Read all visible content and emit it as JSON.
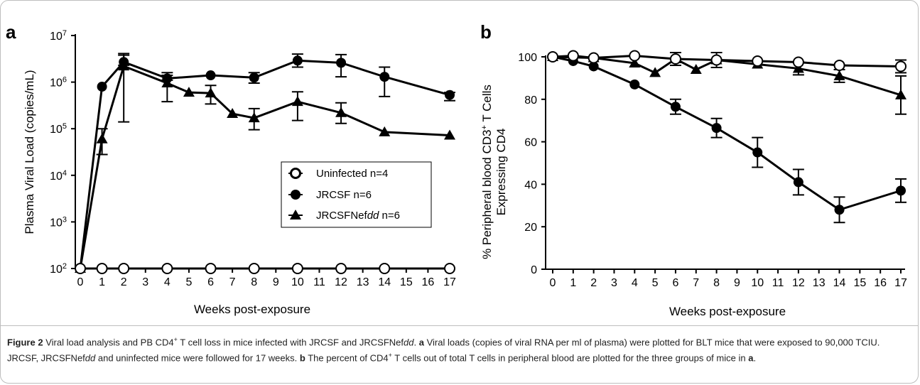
{
  "chart_data": [
    {
      "panel": "a",
      "type": "line",
      "y_scale": "log",
      "xlabel": "Weeks post-exposure",
      "ylabel": "Plasma Viral Load (copies/mL)",
      "xlim": [
        0,
        17
      ],
      "ylim": [
        100,
        10000000
      ],
      "x_ticks": [
        "0",
        "1",
        "2",
        "3",
        "4",
        "5",
        "6",
        "7",
        "8",
        "9",
        "10",
        "11",
        "12",
        "13",
        "14",
        "15",
        "16",
        "17"
      ],
      "y_ticks": [
        {
          "base": "10",
          "exp": "2",
          "value": 100
        },
        {
          "base": "10",
          "exp": "3",
          "value": 1000
        },
        {
          "base": "10",
          "exp": "4",
          "value": 10000
        },
        {
          "base": "10",
          "exp": "5",
          "value": 100000
        },
        {
          "base": "10",
          "exp": "6",
          "value": 1000000
        },
        {
          "base": "10",
          "exp": "7",
          "value": 10000000
        }
      ],
      "legend_position": "lower-right",
      "series": [
        {
          "name": "Uninfected n=4",
          "marker": "circle-open",
          "x": [
            0,
            1,
            2,
            4,
            6,
            8,
            10,
            12,
            14,
            17
          ],
          "y": [
            100,
            100,
            100,
            100,
            100,
            100,
            100,
            100,
            100,
            100
          ],
          "err": [
            0,
            0,
            0,
            0,
            0,
            0,
            0,
            0,
            0,
            0
          ]
        },
        {
          "name": "JRCSF n=6",
          "marker": "circle-filled",
          "x": [
            0,
            1,
            2,
            4,
            6,
            8,
            10,
            12,
            14,
            17
          ],
          "y": [
            100,
            800000,
            2700000,
            1200000,
            1400000,
            1250000,
            2900000,
            2600000,
            1300000,
            530000
          ],
          "err_low": [
            100,
            800000,
            2300000,
            1100000,
            1400000,
            950000,
            2100000,
            1300000,
            490000,
            400000
          ],
          "err_high": [
            100,
            800000,
            4100000,
            1600000,
            1400000,
            1600000,
            4000000,
            3900000,
            2100000,
            600000
          ]
        },
        {
          "name": "JRCSFNefdd n=6",
          "marker": "triangle-filled",
          "x": [
            0,
            1,
            2,
            4,
            5,
            6,
            7,
            8,
            10,
            12,
            14,
            17
          ],
          "y": [
            100,
            60000,
            2200000,
            950000,
            600000,
            580000,
            210000,
            170000,
            380000,
            220000,
            85000,
            72000
          ],
          "err_low": [
            100,
            28000,
            140000,
            380000,
            600000,
            340000,
            210000,
            95000,
            150000,
            130000,
            85000,
            72000
          ],
          "err_high": [
            100,
            100000,
            3800000,
            1400000,
            600000,
            850000,
            210000,
            270000,
            620000,
            360000,
            85000,
            72000
          ]
        }
      ]
    },
    {
      "panel": "b",
      "type": "line",
      "xlabel": "Weeks post-exposure",
      "ylabel_line1_prefix": "% Peripheral blood CD3",
      "ylabel_line1_sup": "+",
      "ylabel_line1_suffix": " T Cells",
      "ylabel_line2": "Expressing CD4",
      "xlim": [
        0,
        17
      ],
      "ylim": [
        0,
        100
      ],
      "x_ticks": [
        "0",
        "1",
        "2",
        "3",
        "4",
        "5",
        "6",
        "7",
        "8",
        "9",
        "10",
        "11",
        "12",
        "13",
        "14",
        "15",
        "16",
        "17"
      ],
      "y_ticks": [
        "0",
        "20",
        "40",
        "60",
        "80",
        "100"
      ],
      "series": [
        {
          "name": "Uninfected n=4",
          "marker": "circle-open",
          "x": [
            0,
            1,
            2,
            4,
            6,
            8,
            10,
            12,
            14,
            17
          ],
          "y": [
            100,
            100.5,
            99.5,
            100.5,
            99,
            98.5,
            98,
            97.5,
            96,
            95.5
          ],
          "err": [
            0,
            0,
            0,
            0,
            0,
            0,
            0,
            0,
            0,
            3
          ]
        },
        {
          "name": "JRCSF n=6",
          "marker": "circle-filled",
          "x": [
            0,
            1,
            2,
            4,
            6,
            8,
            10,
            12,
            14,
            17
          ],
          "y": [
            100,
            98,
            95.5,
            87,
            76.5,
            66.5,
            55,
            41,
            28,
            37
          ],
          "err": [
            0,
            0,
            0,
            0,
            3.5,
            4.5,
            7,
            6,
            6,
            5.5
          ]
        },
        {
          "name": "JRCSFNefdd n=6",
          "marker": "triangle-filled",
          "x": [
            0,
            2,
            4,
            5,
            6,
            7,
            8,
            10,
            12,
            14,
            17
          ],
          "y": [
            100,
            99.5,
            97,
            92.5,
            99,
            94,
            98.5,
            96.5,
            94.5,
            91,
            82
          ],
          "err": [
            0,
            0,
            0,
            0,
            3,
            0,
            3.5,
            0,
            3,
            3,
            9
          ]
        }
      ]
    }
  ],
  "legend": {
    "items": [
      {
        "label": "Uninfected n=4",
        "marker": "circle-open"
      },
      {
        "label": "JRCSF n=6",
        "marker": "circle-filled"
      },
      {
        "label_prefix": "JRCSFNef",
        "label_italic": "dd",
        "label_suffix": " n=6",
        "marker": "triangle-filled"
      }
    ]
  },
  "panel_labels": {
    "a": "a",
    "b": "b"
  },
  "caption": {
    "figure_label": "Figure 2",
    "title_part1": " Viral load analysis and PB CD4",
    "title_sup": "+",
    "title_part2": " T cell loss in mice infected with JRCSF and JRCSFNef",
    "title_italic": "dd",
    "title_end": ". ",
    "a_label": "a",
    "text_a_part1": " Viral loads (copies of viral RNA per ml of plasma) were plotted for BLT mice that were exposed to 90,000 TCIU. JRCSF, JRCSFNef",
    "text_a_italic": "dd",
    "text_a_part2": " and uninfected mice were followed for 17 weeks. ",
    "b_label": "b",
    "text_b_part1": " The percent of CD4",
    "text_b_sup": "+",
    "text_b_part2": " T cells out of total T cells in peripheral blood are plotted for the three groups of mice in ",
    "text_b_ref": "a",
    "text_b_end": "."
  }
}
